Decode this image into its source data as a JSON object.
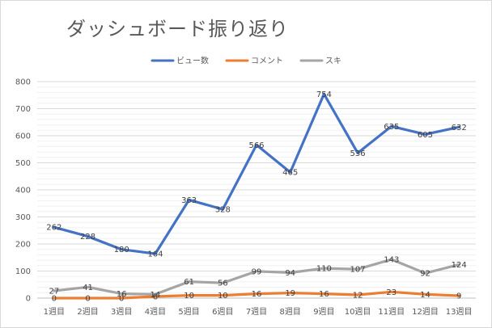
{
  "chart_data": {
    "type": "line",
    "title": "ダッシュボード振り返り",
    "categories": [
      "1週目",
      "2週目",
      "3週目",
      "4週目",
      "5週目",
      "6週目",
      "7週目",
      "8週目",
      "9週目",
      "10週目",
      "11週目",
      "12週目",
      "13週目"
    ],
    "series": [
      {
        "name": "ビュー数",
        "color": "#4472c4",
        "values": [
          262,
          228,
          180,
          164,
          363,
          328,
          566,
          465,
          754,
          536,
          635,
          605,
          632
        ]
      },
      {
        "name": "コメント",
        "color": "#ed7d31",
        "values": [
          0,
          0,
          0,
          6,
          10,
          10,
          16,
          19,
          16,
          12,
          23,
          14,
          9
        ]
      },
      {
        "name": "スキ",
        "color": "#a5a5a5",
        "values": [
          27,
          41,
          16,
          14,
          61,
          56,
          99,
          94,
          110,
          107,
          143,
          92,
          124
        ]
      }
    ],
    "ylim": [
      0,
      800
    ],
    "yticks": [
      0,
      100,
      200,
      300,
      400,
      500,
      600,
      700,
      800
    ],
    "xlabel": "",
    "ylabel": "",
    "legend_position": "top",
    "grid": true
  }
}
